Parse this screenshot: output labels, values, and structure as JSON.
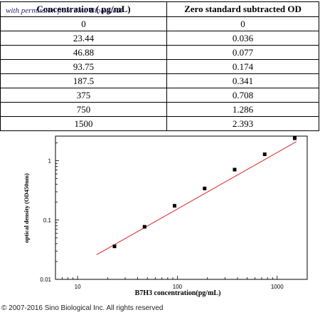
{
  "table": {
    "headers": [
      "Concentration ( pg/mL)",
      "Zero standard subtracted OD"
    ],
    "rows": [
      [
        "0",
        "0"
      ],
      [
        "23.44",
        "0.036"
      ],
      [
        "46.88",
        "0.077"
      ],
      [
        "93.75",
        "0.174"
      ],
      [
        "187.5",
        "0.341"
      ],
      [
        "375",
        "0.708"
      ],
      [
        "750",
        "1.286"
      ],
      [
        "1500",
        "2.393"
      ]
    ]
  },
  "watermark": "with permission from Sino Biological",
  "copyright": "© 2007-2016 Sino Biological Inc. All rights reserved",
  "chart_data": {
    "type": "scatter",
    "xlabel": "B7H3  concentration(pg/mL)",
    "ylabel": "optical density (OD450nm)",
    "x_scale": "log",
    "y_scale": "log",
    "xlim": [
      6,
      2000
    ],
    "ylim": [
      0.01,
      2.6
    ],
    "x_ticks": [
      10,
      100,
      1000
    ],
    "x_tick_labels": [
      "10",
      "100",
      "1000"
    ],
    "y_ticks": [
      0.01,
      0.1,
      1
    ],
    "y_tick_labels": [
      "0.01",
      "0.1",
      "1"
    ],
    "series": [
      {
        "x": [
          23.44,
          46.88,
          93.75,
          187.5,
          375,
          750,
          1500
        ],
        "y": [
          0.036,
          0.077,
          0.174,
          0.341,
          0.708,
          1.286,
          2.393
        ]
      }
    ],
    "fit_line": {
      "x": [
        15.5,
        1560
      ],
      "y": [
        0.026,
        2.1
      ]
    },
    "colors": {
      "points": "#000000",
      "fit": "#e02020",
      "axis": "#000000"
    },
    "grid": false
  }
}
